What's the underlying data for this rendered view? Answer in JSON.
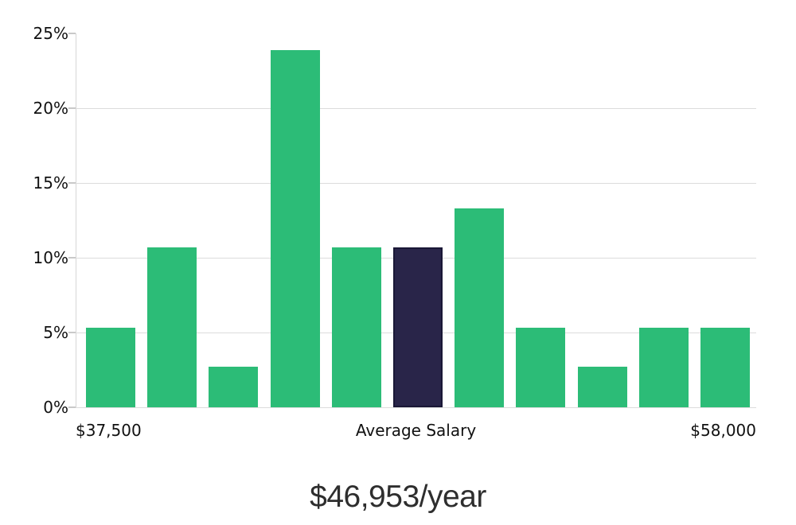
{
  "chart_data": {
    "type": "bar",
    "title": "$46,953/year",
    "subtitle": "",
    "xlabel": "",
    "ylabel": "",
    "categories": [
      "bin-1",
      "bin-2",
      "bin-3",
      "bin-4",
      "bin-5",
      "bin-6-average",
      "bin-7",
      "bin-8",
      "bin-9",
      "bin-10",
      "bin-11"
    ],
    "values": [
      5.3,
      10.7,
      2.7,
      23.9,
      10.7,
      10.7,
      13.3,
      5.3,
      2.7,
      5.3,
      5.3
    ],
    "highlight_index": 5,
    "highlight_meaning": "Average Salary bin",
    "ylim": [
      0,
      25
    ],
    "y_ticks": [
      "25%",
      "20%",
      "15%",
      "10%",
      "5%",
      "0%"
    ],
    "x_axis_labels": {
      "left": "$37,500",
      "center": "Average Salary",
      "right": "$58,000"
    },
    "grid": true,
    "legend": false,
    "colors": {
      "bar": "#2cbc77",
      "highlight_bar": "#292549",
      "highlight_border": "#1a1736",
      "gridline": "#dcdcdc",
      "axis_text": "#111111",
      "title_text": "#2e2e2e"
    }
  }
}
